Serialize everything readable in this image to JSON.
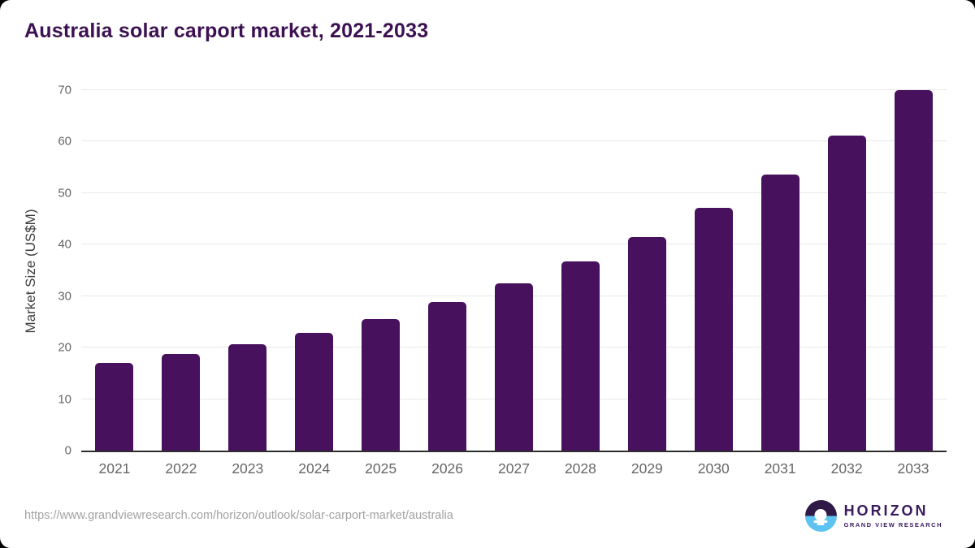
{
  "title": "Australia solar carport market, 2021-2033",
  "chart_data": {
    "type": "bar",
    "title": "Australia solar carport market, 2021-2033",
    "categories": [
      "2021",
      "2022",
      "2023",
      "2024",
      "2025",
      "2026",
      "2027",
      "2028",
      "2029",
      "2030",
      "2031",
      "2032",
      "2033"
    ],
    "values": [
      17.0,
      18.7,
      20.6,
      22.8,
      25.6,
      28.9,
      32.5,
      36.7,
      41.4,
      47.1,
      53.6,
      61.2,
      70.0
    ],
    "xlabel": "",
    "ylabel": "Market Size (US$M)",
    "ylim": [
      0,
      70
    ],
    "yticks": [
      0,
      10,
      20,
      30,
      40,
      50,
      60,
      70
    ],
    "grid": true,
    "legend": "none",
    "bar_color": "#48115e"
  },
  "colors": {
    "title": "#3d1052",
    "bar": "#48115e",
    "tick_labels": "#666666",
    "gridline": "#e8e8e8",
    "axis_line": "#2d2d2d",
    "url_text": "#a2a2a2",
    "logo_purple": "#3a1a5e",
    "logo_blue": "#5ec3f0"
  },
  "footer": {
    "source_url": "https://www.grandviewresearch.com/horizon/outlook/solar-carport-market/australia",
    "logo": {
      "name": "HORIZON",
      "subtitle": "GRAND VIEW RESEARCH"
    }
  }
}
